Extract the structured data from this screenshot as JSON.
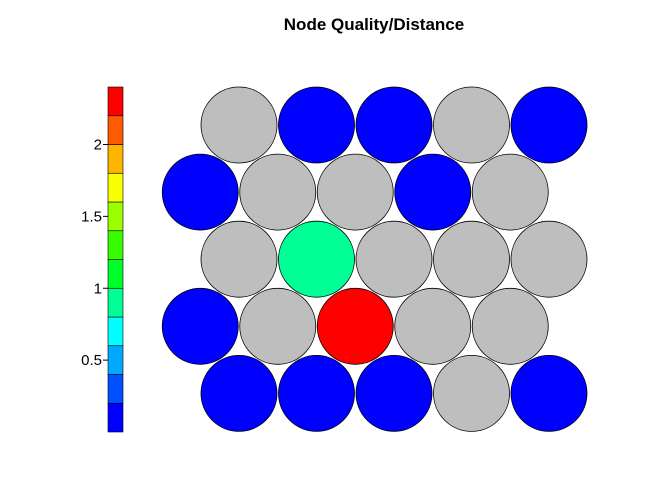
{
  "title": "Node Quality/Distance",
  "chart_data": {
    "type": "heatmap",
    "title": "Node Quality/Distance",
    "layout": "hexagonal",
    "grid": false,
    "colorbar": {
      "placement": "left",
      "colors": [
        "#0000ff",
        "#0050ff",
        "#00a8ff",
        "#00ffff",
        "#00ff94",
        "#00ff2a",
        "#38ff00",
        "#9cff00",
        "#f8ff00",
        "#ffb400",
        "#ff5a00",
        "#ff0000"
      ],
      "range": [
        0,
        2.4
      ],
      "ticks": [
        0.5,
        1,
        1.5,
        2
      ],
      "tick_labels": [
        "0.5",
        "1",
        "1.5",
        "2"
      ]
    },
    "na_color": "#bebebe",
    "rows": [
      [
        "na",
        0,
        0,
        "na",
        0
      ],
      [
        0,
        "na",
        "na",
        0,
        "na"
      ],
      [
        "na",
        0.98,
        "na",
        "na",
        "na"
      ],
      [
        0,
        "na",
        2.35,
        "na",
        "na"
      ],
      [
        0,
        0,
        0,
        "na",
        0
      ]
    ]
  }
}
